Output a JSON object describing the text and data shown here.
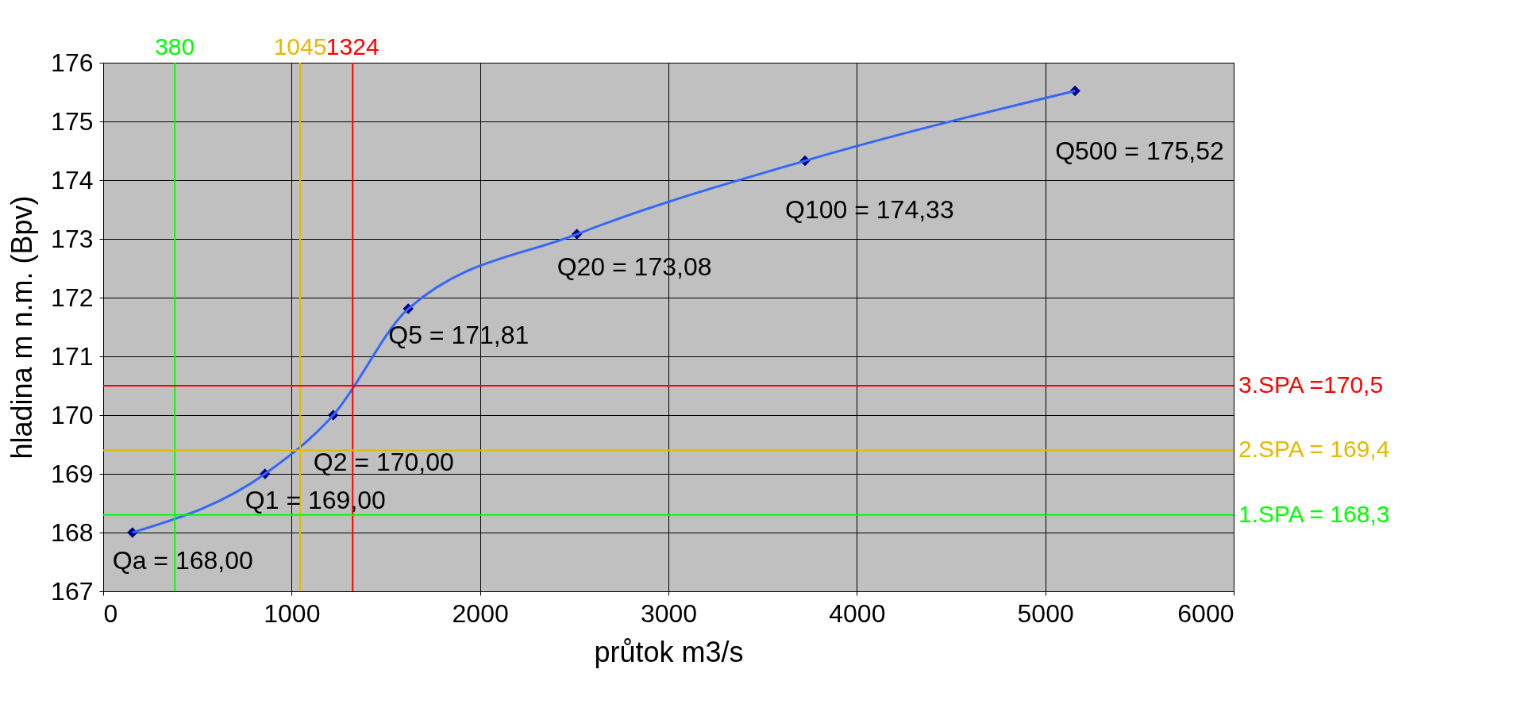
{
  "chart_data": {
    "type": "line",
    "xlabel": "průtok m3/s",
    "ylabel": "hladina m n.m. (Bpv)",
    "x": [
      155,
      859,
      1221,
      1619,
      2514,
      3725,
      5158
    ],
    "series": [
      {
        "type": "line",
        "color": "#3366ff",
        "marker": "none",
        "values": [
          168.0,
          169.0,
          170.0,
          171.81,
          173.08,
          174.33,
          175.52
        ]
      },
      {
        "type": "scatter",
        "color": "#000080",
        "marker": "diamond",
        "values": [
          168.0,
          169.0,
          170.0,
          171.81,
          173.08,
          174.33,
          175.52
        ]
      }
    ],
    "annotations": [
      {
        "text": "Qa = 168,00",
        "x": 155,
        "y": 168.0
      },
      {
        "text": "Q1 = 169,00",
        "x": 859,
        "y": 169.0
      },
      {
        "text": "Q2 = 170,00",
        "x": 1221,
        "y": 170.0
      },
      {
        "text": "Q5 = 171,81",
        "x": 1619,
        "y": 171.81
      },
      {
        "text": "Q20 = 173,08",
        "x": 2514,
        "y": 173.08
      },
      {
        "text": "Q100 = 174,33",
        "x": 3725,
        "y": 174.33
      },
      {
        "text": "Q500 = 175,52",
        "x": 5158,
        "y": 175.52
      }
    ],
    "ref_lines": [
      {
        "axis": "x",
        "value": 380,
        "label": "380",
        "color": "#00ff00"
      },
      {
        "axis": "x",
        "value": 1045,
        "label": "1045",
        "color": "#e6b800"
      },
      {
        "axis": "x",
        "value": 1324,
        "label": "1324",
        "color": "#ff0000"
      },
      {
        "axis": "y",
        "value": 170.5,
        "label": "3.SPA =170,5",
        "color": "#ff0000"
      },
      {
        "axis": "y",
        "value": 169.4,
        "label": "2.SPA = 169,4",
        "color": "#e6b800"
      },
      {
        "axis": "y",
        "value": 168.3,
        "label": "1.SPA = 168,3",
        "color": "#00ff00"
      }
    ],
    "xlim": [
      0,
      6000
    ],
    "xticks": [
      0,
      1000,
      2000,
      3000,
      4000,
      5000,
      6000
    ],
    "ylim": [
      167,
      176
    ],
    "yticks": [
      167,
      168,
      169,
      170,
      171,
      172,
      173,
      174,
      175,
      176
    ],
    "grid": true,
    "legend": false
  }
}
